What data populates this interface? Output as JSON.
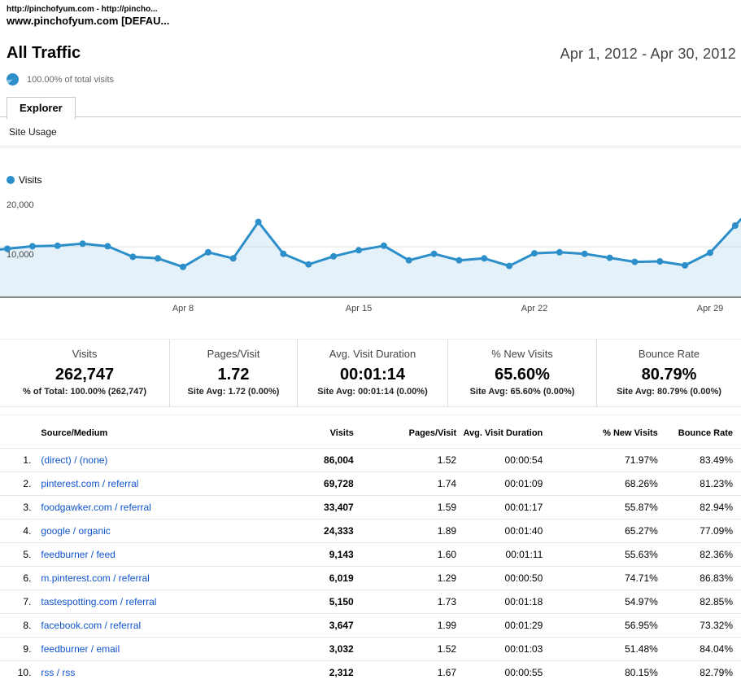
{
  "colors": {
    "accent_blue": "#2c8fc9",
    "link_blue": "#1155cc",
    "fill_blue": "rgba(44,143,201,0.12)"
  },
  "header": {
    "profile_line": "http://pinchofyum.com - http://pincho...",
    "account_line": "www.pinchofyum.com [DEFAU...",
    "title": "All Traffic",
    "date_range": "Apr 1, 2012 - Apr 30, 2012",
    "visits_share": "100.00% of total visits"
  },
  "tabs": {
    "explorer": "Explorer",
    "subtab": "Site Usage"
  },
  "chart_data": {
    "type": "area",
    "title": "Visits over time (daily)",
    "legend": [
      "Visits"
    ],
    "legend_position": "top-left",
    "grid": true,
    "ylim": [
      0,
      20000
    ],
    "y_ticks": [
      {
        "label": "20,000",
        "value": 20000
      },
      {
        "label": "10,000",
        "value": 10000
      }
    ],
    "x": [
      "Apr 1",
      "Apr 2",
      "Apr 3",
      "Apr 4",
      "Apr 5",
      "Apr 6",
      "Apr 7",
      "Apr 8",
      "Apr 9",
      "Apr 10",
      "Apr 11",
      "Apr 12",
      "Apr 13",
      "Apr 14",
      "Apr 15",
      "Apr 16",
      "Apr 17",
      "Apr 18",
      "Apr 19",
      "Apr 20",
      "Apr 21",
      "Apr 22",
      "Apr 23",
      "Apr 24",
      "Apr 25",
      "Apr 26",
      "Apr 27",
      "Apr 28",
      "Apr 29",
      "Apr 30"
    ],
    "x_tick_labels": [
      "Apr 8",
      "Apr 15",
      "Apr 22",
      "Apr 29"
    ],
    "series": [
      {
        "name": "Visits",
        "values": [
          9600,
          10100,
          10200,
          10600,
          10100,
          8000,
          7700,
          6000,
          8900,
          7700,
          14900,
          8600,
          6500,
          8100,
          9300,
          10200,
          7300,
          8600,
          7300,
          7700,
          6200,
          8700,
          8900,
          8600,
          7800,
          7000,
          7100,
          6300,
          8800,
          14200
        ]
      }
    ]
  },
  "metrics": [
    {
      "label": "Visits",
      "value": "262,747",
      "sub": "% of Total: 100.00% (262,747)"
    },
    {
      "label": "Pages/Visit",
      "value": "1.72",
      "sub": "Site Avg: 1.72 (0.00%)"
    },
    {
      "label": "Avg. Visit Duration",
      "value": "00:01:14",
      "sub": "Site Avg: 00:01:14 (0.00%)"
    },
    {
      "label": "% New Visits",
      "value": "65.60%",
      "sub": "Site Avg: 65.60% (0.00%)"
    },
    {
      "label": "Bounce Rate",
      "value": "80.79%",
      "sub": "Site Avg: 80.79% (0.00%)"
    }
  ],
  "table": {
    "columns": [
      "Source/Medium",
      "Visits",
      "Pages/Visit",
      "Avg. Visit Duration",
      "% New Visits",
      "Bounce Rate"
    ],
    "rows": [
      {
        "rank": "1.",
        "source": "(direct) / (none)",
        "visits": "86,004",
        "pages": "1.52",
        "duration": "00:00:54",
        "new_visits": "71.97%",
        "bounce": "83.49%"
      },
      {
        "rank": "2.",
        "source": "pinterest.com / referral",
        "visits": "69,728",
        "pages": "1.74",
        "duration": "00:01:09",
        "new_visits": "68.26%",
        "bounce": "81.23%"
      },
      {
        "rank": "3.",
        "source": "foodgawker.com / referral",
        "visits": "33,407",
        "pages": "1.59",
        "duration": "00:01:17",
        "new_visits": "55.87%",
        "bounce": "82.94%"
      },
      {
        "rank": "4.",
        "source": "google / organic",
        "visits": "24,333",
        "pages": "1.89",
        "duration": "00:01:40",
        "new_visits": "65.27%",
        "bounce": "77.09%"
      },
      {
        "rank": "5.",
        "source": "feedburner / feed",
        "visits": "9,143",
        "pages": "1.60",
        "duration": "00:01:11",
        "new_visits": "55.63%",
        "bounce": "82.36%"
      },
      {
        "rank": "6.",
        "source": "m.pinterest.com / referral",
        "visits": "6,019",
        "pages": "1.29",
        "duration": "00:00:50",
        "new_visits": "74.71%",
        "bounce": "86.83%"
      },
      {
        "rank": "7.",
        "source": "tastespotting.com / referral",
        "visits": "5,150",
        "pages": "1.73",
        "duration": "00:01:18",
        "new_visits": "54.97%",
        "bounce": "82.85%"
      },
      {
        "rank": "8.",
        "source": "facebook.com / referral",
        "visits": "3,647",
        "pages": "1.99",
        "duration": "00:01:29",
        "new_visits": "56.95%",
        "bounce": "73.32%"
      },
      {
        "rank": "9.",
        "source": "feedburner / email",
        "visits": "3,032",
        "pages": "1.52",
        "duration": "00:01:03",
        "new_visits": "51.48%",
        "bounce": "84.04%"
      },
      {
        "rank": "10.",
        "source": "rss / rss",
        "visits": "2,312",
        "pages": "1.67",
        "duration": "00:00:55",
        "new_visits": "80.15%",
        "bounce": "82.79%"
      }
    ]
  }
}
